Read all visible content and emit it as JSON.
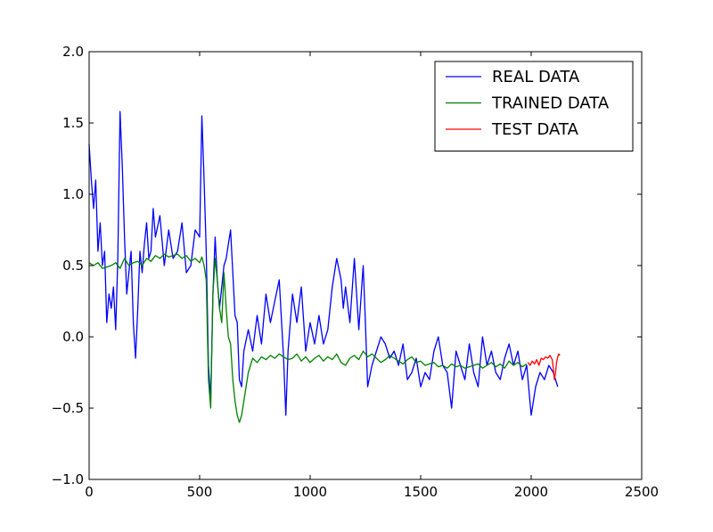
{
  "chart_data": {
    "type": "line",
    "title": "",
    "xlabel": "",
    "ylabel": "",
    "xlim": [
      0,
      2500
    ],
    "ylim": [
      -1.0,
      2.0
    ],
    "grid": false,
    "legend_position": "top-right",
    "xticks": [
      0,
      500,
      1000,
      1500,
      2000,
      2500
    ],
    "xtick_labels": [
      "0",
      "500",
      "1000",
      "1500",
      "2000",
      "2500"
    ],
    "yticks": [
      -1.0,
      -0.5,
      0.0,
      0.5,
      1.0,
      1.5,
      2.0
    ],
    "ytick_labels": [
      "−1.0",
      "−0.5",
      "0.0",
      "0.5",
      "1.0",
      "1.5",
      "2.0"
    ],
    "series": [
      {
        "name": "REAL DATA",
        "color": "#0000ff",
        "x": [
          0,
          10,
          20,
          30,
          40,
          50,
          60,
          70,
          80,
          90,
          100,
          110,
          120,
          130,
          140,
          150,
          160,
          170,
          180,
          190,
          200,
          210,
          220,
          230,
          240,
          250,
          260,
          270,
          280,
          290,
          300,
          320,
          340,
          360,
          380,
          400,
          420,
          440,
          460,
          480,
          500,
          510,
          520,
          530,
          540,
          550,
          560,
          570,
          580,
          590,
          600,
          610,
          620,
          640,
          660,
          670,
          680,
          690,
          700,
          720,
          740,
          760,
          780,
          800,
          820,
          840,
          860,
          880,
          890,
          900,
          920,
          940,
          960,
          980,
          1000,
          1020,
          1040,
          1060,
          1080,
          1100,
          1120,
          1140,
          1150,
          1160,
          1180,
          1200,
          1220,
          1240,
          1250,
          1260,
          1280,
          1300,
          1320,
          1340,
          1360,
          1380,
          1400,
          1420,
          1440,
          1460,
          1480,
          1500,
          1520,
          1540,
          1560,
          1580,
          1600,
          1620,
          1640,
          1660,
          1680,
          1700,
          1720,
          1740,
          1760,
          1780,
          1800,
          1820,
          1840,
          1860,
          1880,
          1900,
          1920,
          1940,
          1960,
          1980,
          2000,
          2020,
          2040,
          2060,
          2080,
          2100,
          2120
        ],
        "y": [
          1.35,
          1.1,
          0.9,
          1.1,
          0.6,
          0.8,
          0.5,
          0.6,
          0.1,
          0.3,
          0.2,
          0.35,
          0.05,
          0.55,
          1.58,
          1.2,
          0.7,
          0.3,
          0.45,
          0.6,
          0.1,
          -0.15,
          0.2,
          0.6,
          0.45,
          0.65,
          0.8,
          0.55,
          0.6,
          0.9,
          0.7,
          0.85,
          0.5,
          0.75,
          0.55,
          0.6,
          0.8,
          0.45,
          0.5,
          0.75,
          0.7,
          1.55,
          1.1,
          0.6,
          -0.2,
          -0.45,
          0.3,
          0.7,
          0.4,
          0.2,
          0.35,
          0.5,
          0.55,
          0.75,
          0.15,
          0.1,
          -0.3,
          -0.35,
          -0.1,
          0.05,
          -0.1,
          0.15,
          -0.05,
          0.3,
          0.1,
          0.25,
          0.4,
          -0.15,
          -0.55,
          -0.1,
          0.3,
          0.1,
          0.35,
          -0.1,
          0.1,
          -0.05,
          0.15,
          -0.05,
          0.05,
          0.35,
          0.55,
          0.4,
          0.2,
          0.35,
          0.1,
          0.55,
          0.05,
          0.5,
          0.1,
          -0.35,
          -0.2,
          -0.1,
          0.0,
          -0.05,
          -0.15,
          -0.1,
          -0.2,
          -0.05,
          -0.3,
          -0.25,
          -0.15,
          -0.35,
          -0.25,
          -0.3,
          -0.1,
          0.0,
          -0.2,
          -0.25,
          -0.5,
          -0.1,
          -0.2,
          -0.3,
          -0.05,
          -0.25,
          -0.35,
          0.0,
          -0.2,
          -0.1,
          -0.25,
          -0.3,
          -0.15,
          -0.05,
          -0.2,
          -0.1,
          -0.3,
          -0.2,
          -0.55,
          -0.35,
          -0.25,
          -0.3,
          -0.2,
          -0.25,
          -0.35
        ]
      },
      {
        "name": "TRAINED DATA",
        "color": "#008000",
        "x": [
          0,
          20,
          40,
          60,
          80,
          100,
          120,
          140,
          160,
          180,
          200,
          220,
          240,
          260,
          280,
          300,
          320,
          340,
          360,
          380,
          400,
          420,
          440,
          460,
          480,
          500,
          510,
          520,
          530,
          540,
          550,
          560,
          570,
          580,
          590,
          600,
          610,
          620,
          630,
          640,
          650,
          660,
          670,
          680,
          690,
          700,
          720,
          740,
          760,
          780,
          800,
          820,
          840,
          860,
          880,
          900,
          920,
          940,
          960,
          980,
          1000,
          1020,
          1040,
          1060,
          1080,
          1100,
          1120,
          1140,
          1160,
          1180,
          1200,
          1220,
          1240,
          1260,
          1280,
          1300,
          1320,
          1340,
          1360,
          1380,
          1400,
          1420,
          1440,
          1460,
          1480,
          1500,
          1520,
          1540,
          1560,
          1580,
          1600,
          1620,
          1640,
          1660,
          1680,
          1700,
          1720,
          1740,
          1760,
          1780,
          1800,
          1820,
          1840,
          1860,
          1880,
          1900,
          1920,
          1940,
          1960,
          1980
        ],
        "y": [
          0.52,
          0.5,
          0.52,
          0.48,
          0.49,
          0.5,
          0.52,
          0.48,
          0.55,
          0.5,
          0.52,
          0.53,
          0.5,
          0.55,
          0.53,
          0.57,
          0.55,
          0.58,
          0.56,
          0.57,
          0.58,
          0.55,
          0.57,
          0.53,
          0.55,
          0.52,
          0.56,
          0.5,
          0.4,
          -0.3,
          -0.5,
          0.3,
          0.55,
          0.4,
          0.2,
          0.1,
          0.45,
          0.2,
          0.0,
          -0.05,
          -0.3,
          -0.45,
          -0.55,
          -0.6,
          -0.55,
          -0.45,
          -0.25,
          -0.15,
          -0.18,
          -0.14,
          -0.16,
          -0.13,
          -0.15,
          -0.12,
          -0.14,
          -0.16,
          -0.15,
          -0.12,
          -0.17,
          -0.14,
          -0.18,
          -0.15,
          -0.13,
          -0.17,
          -0.14,
          -0.16,
          -0.12,
          -0.18,
          -0.2,
          -0.15,
          -0.13,
          -0.16,
          -0.1,
          -0.14,
          -0.12,
          -0.15,
          -0.18,
          -0.16,
          -0.13,
          -0.15,
          -0.17,
          -0.19,
          -0.16,
          -0.14,
          -0.18,
          -0.17,
          -0.2,
          -0.19,
          -0.18,
          -0.21,
          -0.2,
          -0.22,
          -0.19,
          -0.21,
          -0.2,
          -0.22,
          -0.21,
          -0.2,
          -0.19,
          -0.22,
          -0.2,
          -0.18,
          -0.21,
          -0.19,
          -0.22,
          -0.17,
          -0.2,
          -0.18,
          -0.21,
          -0.19
        ]
      },
      {
        "name": "TEST DATA",
        "color": "#ff0000",
        "x": [
          1985,
          1995,
          2005,
          2015,
          2025,
          2035,
          2045,
          2055,
          2065,
          2075,
          2085,
          2095,
          2100,
          2105,
          2110,
          2115,
          2120,
          2125,
          2130
        ],
        "y": [
          -0.18,
          -0.2,
          -0.17,
          -0.19,
          -0.16,
          -0.2,
          -0.15,
          -0.16,
          -0.14,
          -0.15,
          -0.13,
          -0.16,
          -0.22,
          -0.3,
          -0.25,
          -0.18,
          -0.14,
          -0.12,
          -0.13
        ]
      }
    ]
  }
}
